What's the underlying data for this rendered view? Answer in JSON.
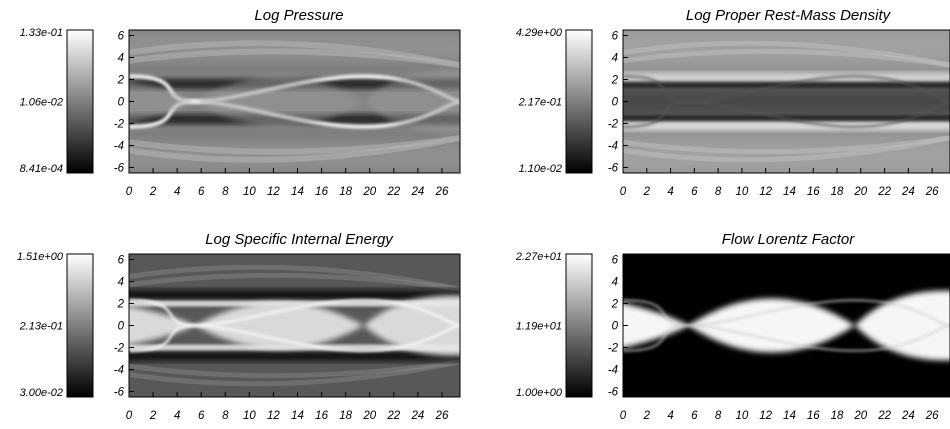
{
  "chart_data": [
    {
      "type": "heatmap",
      "title": "Log Pressure",
      "x_ticks": [
        "0",
        "2",
        "4",
        "6",
        "8",
        "10",
        "12",
        "14",
        "16",
        "18",
        "20",
        "22",
        "24",
        "26"
      ],
      "y_ticks": [
        "6",
        "4",
        "2",
        "0",
        "-2",
        "-4",
        "-6"
      ],
      "xlim": [
        0,
        27.5
      ],
      "ylim": [
        -6.5,
        6.5
      ],
      "colorbar": {
        "max": "1.33e-01",
        "mid": "1.06e-02",
        "min": "8.41e-04",
        "scale": "log",
        "colormap": "grayscale"
      }
    },
    {
      "type": "heatmap",
      "title": "Log Proper Rest-Mass Density",
      "x_ticks": [
        "0",
        "2",
        "4",
        "6",
        "8",
        "10",
        "12",
        "14",
        "16",
        "18",
        "20",
        "22",
        "24",
        "26"
      ],
      "y_ticks": [
        "6",
        "4",
        "2",
        "0",
        "-2",
        "-4",
        "-6"
      ],
      "xlim": [
        0,
        27.5
      ],
      "ylim": [
        -6.5,
        6.5
      ],
      "colorbar": {
        "max": "4.29e+00",
        "mid": "2.17e-01",
        "min": "1.10e-02",
        "scale": "log",
        "colormap": "grayscale"
      }
    },
    {
      "type": "heatmap",
      "title": "Log Specific Internal Energy",
      "x_ticks": [
        "0",
        "2",
        "4",
        "6",
        "8",
        "10",
        "12",
        "14",
        "16",
        "18",
        "20",
        "22",
        "24",
        "26"
      ],
      "y_ticks": [
        "6",
        "4",
        "2",
        "0",
        "-2",
        "-4",
        "-6"
      ],
      "xlim": [
        0,
        27.5
      ],
      "ylim": [
        -6.5,
        6.5
      ],
      "colorbar": {
        "max": "1.51e+00",
        "mid": "2.13e-01",
        "min": "3.00e-02",
        "scale": "log",
        "colormap": "grayscale"
      }
    },
    {
      "type": "heatmap",
      "title": "Flow Lorentz Factor",
      "x_ticks": [
        "0",
        "2",
        "4",
        "6",
        "8",
        "10",
        "12",
        "14",
        "16",
        "18",
        "20",
        "22",
        "24",
        "26"
      ],
      "y_ticks": [
        "6",
        "4",
        "2",
        "0",
        "-2",
        "-4",
        "-6"
      ],
      "xlim": [
        0,
        27.5
      ],
      "ylim": [
        -6.5,
        6.5
      ],
      "colorbar": {
        "max": "2.27e+01",
        "mid": "1.19e+01",
        "min": "1.00e+00",
        "scale": "linear",
        "colormap": "grayscale"
      }
    }
  ]
}
